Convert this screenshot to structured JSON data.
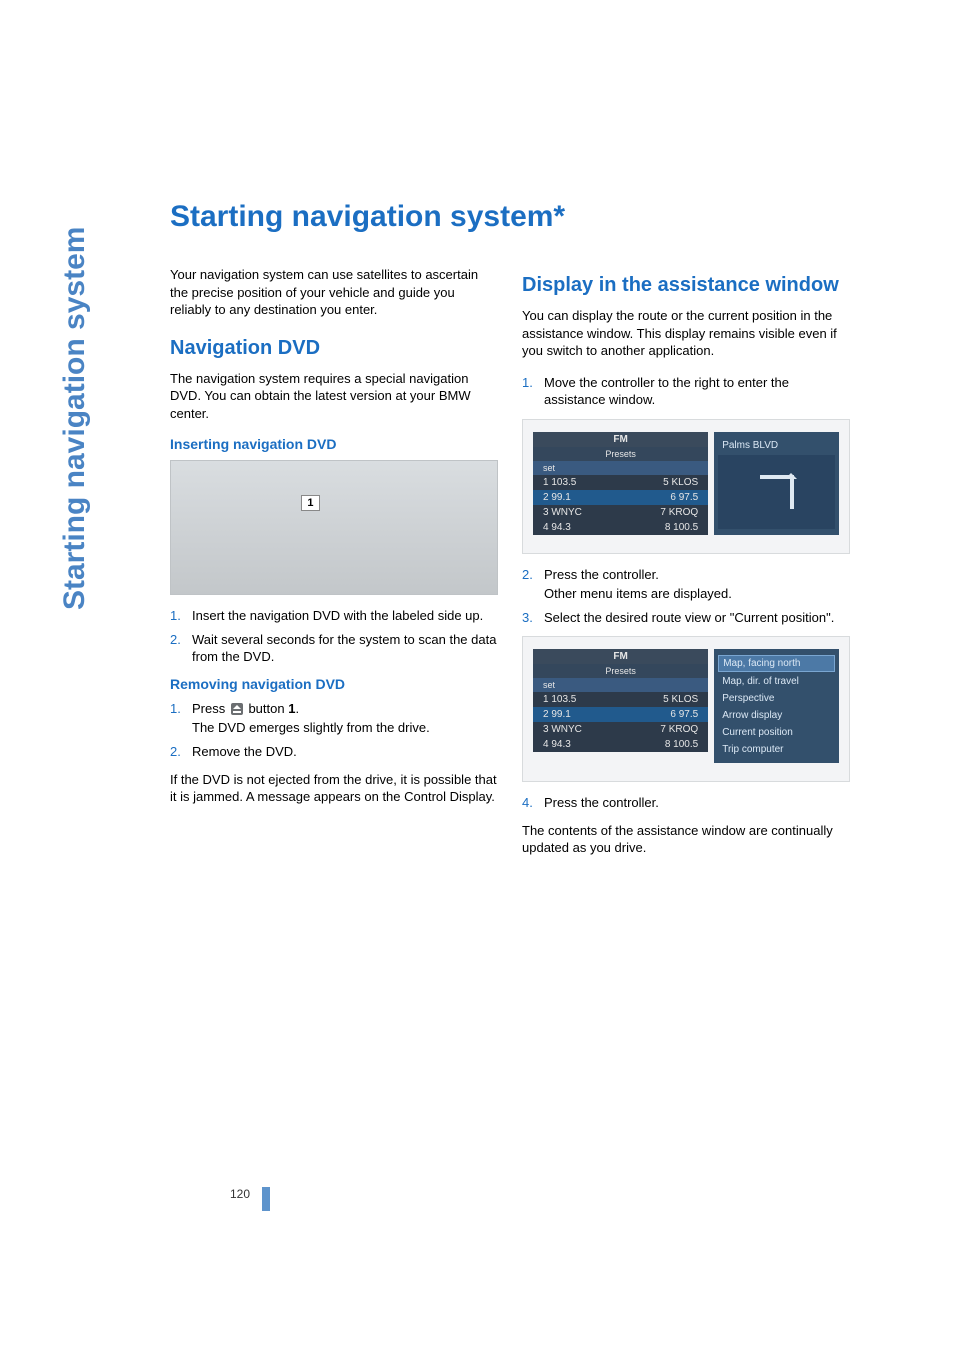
{
  "colors": {
    "accent": "#1b6ec2",
    "sidebar": "#4a84c4",
    "body_text": "#000000",
    "figure_bg_top": "#d9dde0",
    "figure_bg_bottom": "#c3c7ca",
    "radio_bg_dark": "#2d3a4a",
    "radio_bg_highlight": "#215a8d",
    "radio_panel": "#33506c",
    "radio_sel": "#4c79a6",
    "page_marker": "#5e94cc"
  },
  "typography": {
    "title_pt": 30,
    "section_pt": 20,
    "sub_pt": 14,
    "body_pt": 13,
    "font_family": "Arial"
  },
  "page": {
    "sidebar_title": "Starting navigation system",
    "title": "Starting navigation system*",
    "number": "120"
  },
  "left": {
    "intro": "Your navigation system can use satellites to ascertain the precise position of your vehicle and guide you reliably to any destination you enter.",
    "nav_dvd": {
      "heading": "Navigation DVD",
      "desc": "The navigation system requires a special navigation DVD. You can obtain the latest version at your BMW center.",
      "insert_heading": "Inserting navigation DVD",
      "figure_badge": "1",
      "steps": [
        {
          "n": "1.",
          "t": "Insert the navigation DVD with the labeled side up."
        },
        {
          "n": "2.",
          "t": "Wait several seconds for the system to scan the data from the DVD."
        }
      ],
      "remove_heading": "Removing navigation DVD",
      "remove_steps": [
        {
          "n": "1.",
          "t_pre": "Press ",
          "t_post": " button ",
          "bold": "1",
          "t_end": ".",
          "sub": "The DVD emerges slightly from the drive."
        },
        {
          "n": "2.",
          "t": "Remove the DVD."
        }
      ],
      "remove_note": "If the DVD is not ejected from the drive, it is possible that it is jammed. A message appears on the Control Display."
    }
  },
  "right": {
    "assist": {
      "heading": "Display in the assistance window",
      "desc": "You can display the route or the current position in the assistance window. This display remains visible even if you switch to another application.",
      "step1": {
        "n": "1.",
        "t": "Move the controller to the right to enter the assistance window."
      },
      "radio1": {
        "band": "FM",
        "sub": "Presets",
        "set": "set",
        "right_label": "Palms BLVD",
        "rows": [
          {
            "l": "1 103.5",
            "r": "5 KLOS"
          },
          {
            "l": "2 99.1",
            "r": "6 97.5"
          },
          {
            "l": "3 WNYC",
            "r": "7 KROQ"
          },
          {
            "l": "4 94.3",
            "r": "8 100.5"
          }
        ]
      },
      "step2": {
        "n": "2.",
        "t": "Press the controller.",
        "sub": "Other menu items are displayed."
      },
      "step3": {
        "n": "3.",
        "t": "Select the desired route view or \"Current position\"."
      },
      "radio2": {
        "band": "FM",
        "sub": "Presets",
        "set": "set",
        "menu": [
          "Map, facing north",
          "Map, dir. of travel",
          "Perspective",
          "Arrow display",
          "Current position",
          "Trip computer"
        ],
        "rows": [
          {
            "l": "1 103.5",
            "r": "5 KLOS"
          },
          {
            "l": "2 99.1",
            "r": "6 97.5"
          },
          {
            "l": "3 WNYC",
            "r": "7 KROQ"
          },
          {
            "l": "4 94.3",
            "r": "8 100.5"
          }
        ]
      },
      "step4": {
        "n": "4.",
        "t": "Press the controller."
      },
      "closing": "The contents of the assistance window are continually updated as you drive."
    }
  }
}
